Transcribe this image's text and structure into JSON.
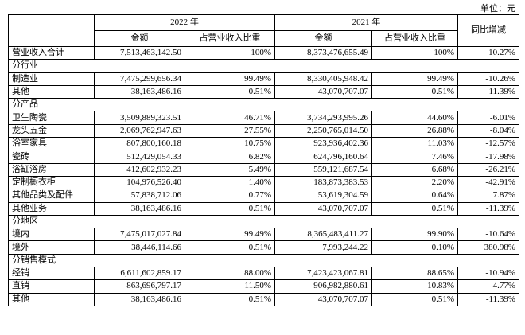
{
  "unit": "单位：元",
  "header": {
    "years": [
      "2022 年",
      "2021 年"
    ],
    "columns": [
      "金额",
      "占营业收入比重",
      "金额",
      "占营业收入比重"
    ],
    "change": "同比增减"
  },
  "total": [
    "营业收入合计",
    "7,513,463,142.50",
    "100%",
    "8,373,476,655.49",
    "100%",
    "-10.27%"
  ],
  "groups": [
    {
      "title": "分行业",
      "rows": [
        [
          "制造业",
          "7,475,299,656.34",
          "99.49%",
          "8,330,405,948.42",
          "99.49%",
          "-10.26%"
        ],
        [
          "其他",
          "38,163,486.16",
          "0.51%",
          "43,070,707.07",
          "0.51%",
          "-11.39%"
        ]
      ]
    },
    {
      "title": "分产品",
      "rows": [
        [
          "卫生陶瓷",
          "3,509,889,323.51",
          "46.71%",
          "3,734,293,995.26",
          "44.60%",
          "-6.01%"
        ],
        [
          "龙头五金",
          "2,069,762,947.63",
          "27.55%",
          "2,250,765,014.50",
          "26.88%",
          "-8.04%"
        ],
        [
          "浴室家具",
          "807,800,160.18",
          "10.75%",
          "923,936,402.36",
          "11.03%",
          "-12.57%"
        ],
        [
          "瓷砖",
          "512,429,054.33",
          "6.82%",
          "624,796,160.64",
          "7.46%",
          "-17.98%"
        ],
        [
          "浴缸浴房",
          "412,602,932.23",
          "5.49%",
          "559,121,687.54",
          "6.68%",
          "-26.21%"
        ],
        [
          "定制橱衣柜",
          "104,976,526.40",
          "1.40%",
          "183,873,383.53",
          "2.20%",
          "-42.91%"
        ],
        [
          "其他品类及配件",
          "57,838,712.06",
          "0.77%",
          "53,619,304.59",
          "0.64%",
          "7.87%"
        ],
        [
          "其他业务",
          "38,163,486.16",
          "0.51%",
          "43,070,707.07",
          "0.51%",
          "-11.39%"
        ]
      ]
    },
    {
      "title": "分地区",
      "rows": [
        [
          "境内",
          "7,475,017,027.84",
          "99.49%",
          "8,365,483,411.27",
          "99.90%",
          "-10.64%"
        ],
        [
          "境外",
          "38,446,114.66",
          "0.51%",
          "7,993,244.22",
          "0.10%",
          "380.98%"
        ]
      ]
    },
    {
      "title": "分销售模式",
      "rows": [
        [
          "经销",
          "6,611,602,859.17",
          "88.00%",
          "7,423,423,067.81",
          "88.65%",
          "-10.94%"
        ],
        [
          "直销",
          "863,696,797.17",
          "11.50%",
          "906,982,880.61",
          "10.83%",
          "-4.77%"
        ],
        [
          "其他",
          "38,163,486.16",
          "0.51%",
          "43,070,707.07",
          "0.51%",
          "-11.39%"
        ]
      ]
    }
  ]
}
